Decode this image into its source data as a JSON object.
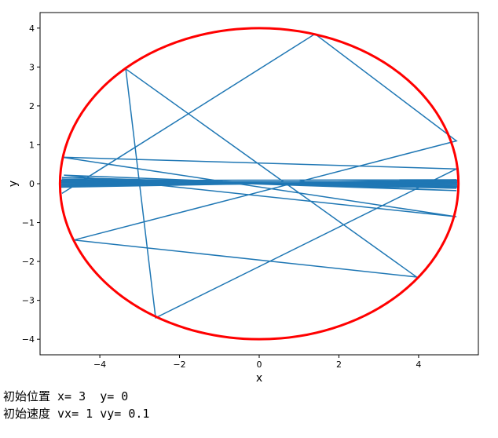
{
  "chart_data": {
    "type": "line",
    "xlabel": "x",
    "ylabel": "y",
    "xlim": [
      -5.5,
      5.5
    ],
    "ylim": [
      -4.4,
      4.4
    ],
    "xticks": [
      -4,
      -2,
      0,
      2,
      4
    ],
    "yticks": [
      -4,
      -3,
      -2,
      -1,
      0,
      1,
      2,
      3,
      4
    ],
    "xtick_labels": [
      "−4",
      "−2",
      "0",
      "2",
      "4"
    ],
    "ytick_labels": [
      "−4",
      "−3",
      "−2",
      "−1",
      "0",
      "1",
      "2",
      "3",
      "4"
    ],
    "grid": false,
    "ellipse": {
      "a": 5,
      "b": 4,
      "color": "#ff0000"
    },
    "trajectory_color": "#1f77b4",
    "trajectory": {
      "x": [
        -4.95,
        1.4,
        4.95,
        -4.65,
        3.95,
        -3.35,
        -2.6,
        4.95,
        -4.95,
        4.95,
        -4.9,
        4.95,
        -4.95,
        4.95,
        -4.95,
        4.95,
        -4.95,
        4.95,
        -4.95,
        4.95,
        -4.95,
        4.95,
        -4.95
      ],
      "y": [
        -0.25,
        3.85,
        1.1,
        -1.45,
        -2.4,
        2.95,
        -3.45,
        0.38,
        0.68,
        -0.85,
        0.22,
        -0.18,
        0.16,
        -0.12,
        0.12,
        -0.08,
        0.08,
        0.1,
        -0.06,
        0.06,
        0.04,
        0.02,
        0.0
      ]
    }
  },
  "caption": {
    "line1": "初始位置 x= 3  y= 0",
    "line2": "初始速度 vx= 1 vy= 0.1"
  }
}
